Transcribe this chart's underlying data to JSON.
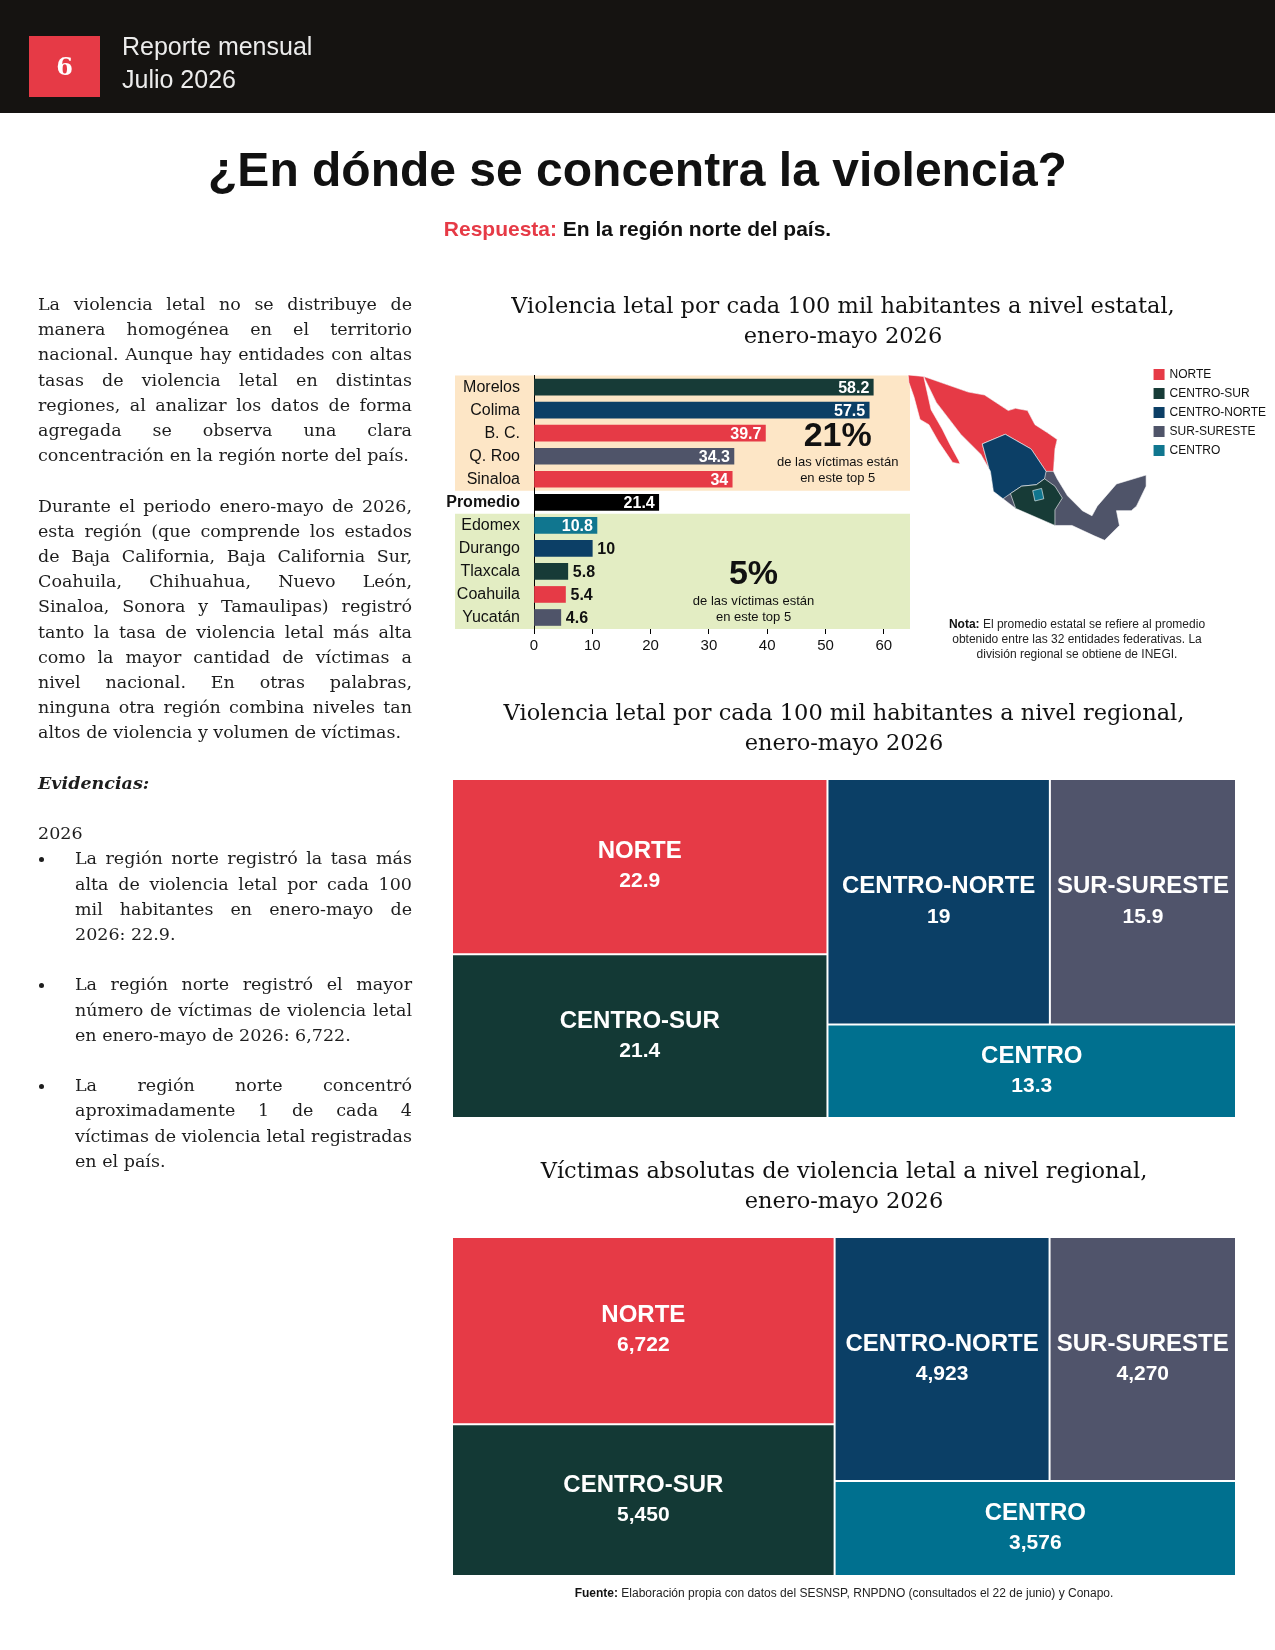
{
  "chart_data": [
    {
      "type": "other",
      "title": "¿En dónde se concentra la violencia?",
      "subtitle": "Respuesta: En la región norte del país.",
      "annotations": [
        "6",
        "Reporte mensual",
        "Julio 2026",
        "La violencia letal no se distribuye de manera homogénea en el territorio nacional. Aunque hay entidades con altas tasas de violencia letal en distintas regiones, al analizar los datos de forma agregada se observa una clara concentración en la región norte del país.",
        "Durante el periodo enero-mayo de 2026, esta región (que comprende los estados de Baja California, Baja California Sur, Coahuila, Chihuahua, Nuevo León, Sinaloa, Sonora y Tamaulipas) registró tanto la tasa de violencia letal más alta como la mayor cantidad de víctimas a nivel nacional. En otras palabras, ninguna otra región combina niveles tan altos de violencia y volumen de víctimas.",
        "Evidencias:",
        "2026",
        "La región norte registró la tasa más alta de violencia letal por cada 100 mil habitantes en enero-mayo de 2026: 22.9.",
        "La región norte registró el mayor número de víctimas de violencia letal en enero-mayo de 2026: 6,722.",
        "La región norte concentró aproximadamente 1 de cada 4 víctimas de violencia letal registradas en el país."
      ]
    },
    {
      "type": "bar",
      "orientation": "horizontal",
      "title": "Violencia letal por cada 100 mil habitantes a nivel estatal, enero-mayo 2026",
      "categories": [
        "Morelos",
        "Colima",
        "B. C.",
        "Q. Roo",
        "Sinaloa",
        "Promedio",
        "Edomex",
        "Durango",
        "Tlaxcala",
        "Coahuila",
        "Yucatán"
      ],
      "series": [
        {
          "name": "NORTE",
          "color": "#e63a46",
          "values": [
            null,
            null,
            39.7,
            null,
            34,
            null,
            null,
            null,
            null,
            5.4,
            null
          ]
        },
        {
          "name": "CENTRO-SUR",
          "color": "#173b37",
          "values": [
            58.2,
            null,
            null,
            null,
            null,
            null,
            null,
            null,
            5.8,
            null,
            null
          ]
        },
        {
          "name": "CENTRO-NORTE",
          "color": "#0c3f66",
          "values": [
            null,
            57.5,
            null,
            null,
            null,
            null,
            null,
            10,
            null,
            null,
            null
          ]
        },
        {
          "name": "SUR-SURESTE",
          "color": "#4f5469",
          "values": [
            null,
            null,
            null,
            34.3,
            null,
            null,
            null,
            null,
            null,
            null,
            4.6
          ]
        },
        {
          "name": "CENTRO",
          "color": "#10768f",
          "values": [
            null,
            null,
            null,
            null,
            null,
            null,
            10.8,
            null,
            null,
            null,
            null
          ]
        },
        {
          "color": "#000000",
          "values": [
            null,
            null,
            null,
            null,
            null,
            21.4,
            null,
            null,
            null,
            null,
            null
          ]
        }
      ],
      "xlim": [
        0,
        64.5
      ],
      "xticks": [
        0,
        10,
        20,
        30,
        40,
        50,
        60
      ],
      "data_labels": true,
      "legend": "top right",
      "bands": [
        {
          "axis": "y",
          "from": "Morelos",
          "to": "Sinaloa",
          "label": "21% de las víctimas están en este top 5",
          "color": "#fde6c6"
        },
        {
          "axis": "y",
          "from": "Edomex",
          "to": "Yucatán",
          "label": "5% de las víctimas están en este top 5",
          "color": "#e3edc3"
        }
      ],
      "annotations": [
        "Nota: El promedio estatal se refiere al promedio obtenido entre las 32 entidades federativas. La división regional se obtiene de INEGI."
      ]
    },
    {
      "type": "other",
      "title": "Violencia letal por cada 100 mil habitantes a nivel regional, enero-mayo 2026",
      "categories": [
        "NORTE",
        "CENTRO-SUR",
        "CENTRO-NORTE",
        "SUR-SURESTE",
        "CENTRO"
      ],
      "values": [
        22.9,
        21.4,
        19,
        15.9,
        13.3
      ],
      "colors": [
        "#e63a46",
        "#133935",
        "#0b3f66",
        "#50546b",
        "#00708f"
      ],
      "data_labels": true
    },
    {
      "type": "other",
      "title": "Víctimas absolutas de violencia letal a nivel regional, enero-mayo 2026",
      "categories": [
        "NORTE",
        "CENTRO-SUR",
        "CENTRO-NORTE",
        "SUR-SURESTE",
        "CENTRO"
      ],
      "values": [
        6722,
        5450,
        4923,
        4270,
        3576
      ],
      "value_labels": [
        "6,722",
        "5,450",
        "4,923",
        "4,270",
        "3,576"
      ],
      "colors": [
        "#e63a46",
        "#133935",
        "#0b3f66",
        "#50546b",
        "#00708f"
      ],
      "annotations": [
        "Fuente: Elaboración propia con datos del SESNSP, RNPDNO (consultados el 22 de junio) y Conapo."
      ]
    }
  ]
}
